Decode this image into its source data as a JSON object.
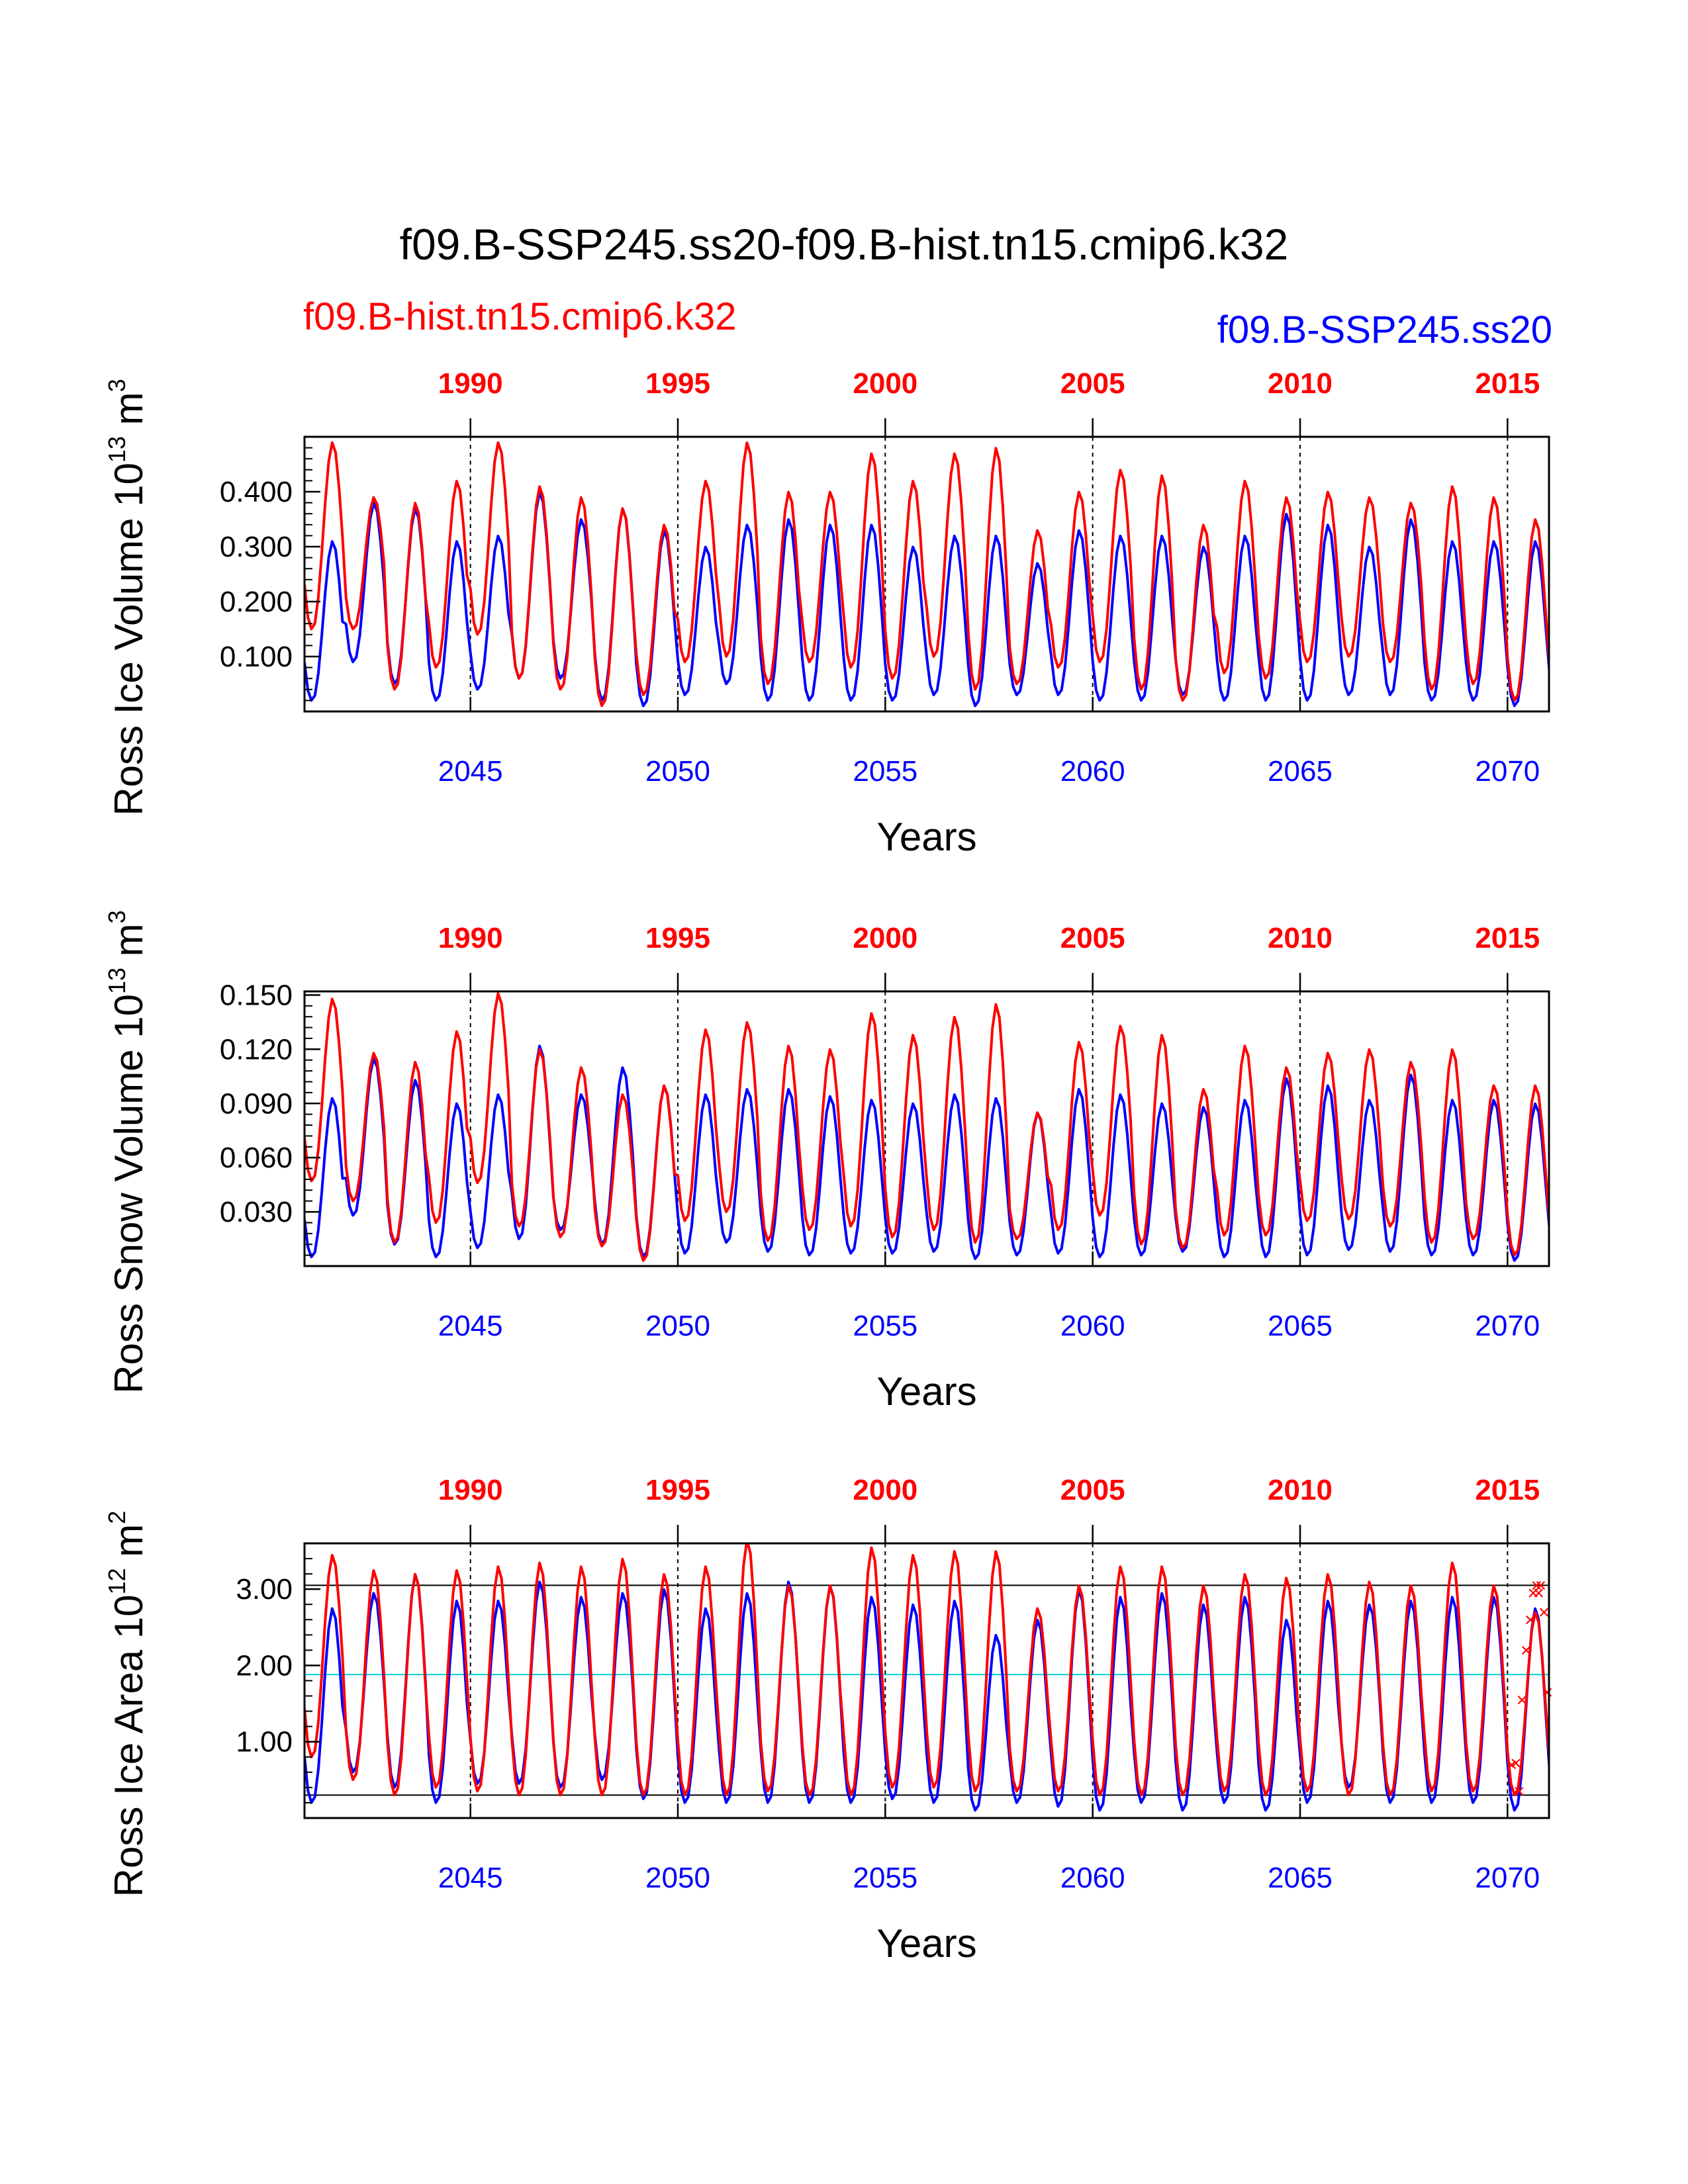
{
  "title": "f09.B-SSP245.ss20-f09.B-hist.tn15.cmip6.k32",
  "legend": {
    "series_a": "f09.B-hist.tn15.cmip6.k32",
    "series_b": "f09.B-SSP245.ss20"
  },
  "colors": {
    "series_a": "#ff0000",
    "series_b": "#0000ff",
    "reference_hline": "#00d0d0",
    "axes": "#000000"
  },
  "chart_data": [
    {
      "type": "line",
      "name": "ross_ice_volume",
      "ylabel_text": "Ross Ice Volume 10",
      "ylabel_exp": "13",
      "ylabel_unit": " m",
      "ylabel_unit_exp": "3",
      "xlabel": "Years",
      "xlim": [
        2041.0,
        2071.0
      ],
      "ylim": [
        0.0,
        0.5
      ],
      "yticks": [
        0.1,
        0.2,
        0.3,
        0.4
      ],
      "ytick_labels": [
        "0.100",
        "0.200",
        "0.300",
        "0.400"
      ],
      "bottom_ticks": [
        2045,
        2050,
        2055,
        2060,
        2065,
        2070
      ],
      "top_ticks": [
        1990,
        1995,
        2000,
        2005,
        2010,
        2015
      ],
      "dashed_vlines_at": [
        2045,
        2050,
        2055,
        2060,
        2065,
        2070
      ],
      "series": [
        {
          "name": "f09.B-hist.tn15.cmip6.k32",
          "color": "#ff0000",
          "annual_min": [
            0.15,
            0.15,
            0.04,
            0.08,
            0.14,
            0.06,
            0.04,
            0.01,
            0.03,
            0.09,
            0.1,
            0.05,
            0.09,
            0.08,
            0.06,
            0.1,
            0.04,
            0.05,
            0.08,
            0.09,
            0.04,
            0.02,
            0.07,
            0.06,
            0.09,
            0.1,
            0.09,
            0.04,
            0.05,
            0.02
          ],
          "annual_max": [
            0.49,
            0.39,
            0.38,
            0.42,
            0.49,
            0.41,
            0.39,
            0.37,
            0.34,
            0.42,
            0.49,
            0.4,
            0.4,
            0.47,
            0.42,
            0.47,
            0.48,
            0.33,
            0.4,
            0.44,
            0.43,
            0.34,
            0.42,
            0.39,
            0.4,
            0.39,
            0.38,
            0.41,
            0.39,
            0.35
          ]
        },
        {
          "name": "f09.B-SSP245.ss20",
          "color": "#0000ff",
          "annual_min": [
            0.02,
            0.09,
            0.05,
            0.02,
            0.04,
            0.06,
            0.06,
            0.02,
            0.01,
            0.03,
            0.05,
            0.02,
            0.02,
            0.02,
            0.02,
            0.03,
            0.01,
            0.03,
            0.03,
            0.02,
            0.02,
            0.03,
            0.02,
            0.02,
            0.02,
            0.03,
            0.03,
            0.02,
            0.02,
            0.01
          ],
          "annual_max": [
            0.31,
            0.38,
            0.37,
            0.31,
            0.32,
            0.4,
            0.35,
            0.37,
            0.33,
            0.3,
            0.34,
            0.35,
            0.34,
            0.34,
            0.3,
            0.32,
            0.32,
            0.27,
            0.33,
            0.32,
            0.32,
            0.3,
            0.32,
            0.36,
            0.34,
            0.3,
            0.35,
            0.31,
            0.31,
            0.31
          ]
        }
      ]
    },
    {
      "type": "line",
      "name": "ross_snow_volume",
      "ylabel_text": "Ross Snow Volume 10",
      "ylabel_exp": "13",
      "ylabel_unit": " m",
      "ylabel_unit_exp": "3",
      "xlabel": "Years",
      "xlim": [
        2041.0,
        2071.0
      ],
      "ylim": [
        0.0,
        0.152
      ],
      "yticks": [
        0.03,
        0.06,
        0.09,
        0.12,
        0.15
      ],
      "ytick_labels": [
        "0.030",
        "0.060",
        "0.090",
        "0.120",
        "0.150"
      ],
      "bottom_ticks": [
        2045,
        2050,
        2055,
        2060,
        2065,
        2070
      ],
      "top_ticks": [
        1990,
        1995,
        2000,
        2005,
        2010,
        2015
      ],
      "dashed_vlines_at": [
        2045,
        2050,
        2055,
        2060,
        2065,
        2070
      ],
      "series": [
        {
          "name": "f09.B-hist.tn15.cmip6.k32",
          "color": "#ff0000",
          "annual_min": [
            0.047,
            0.036,
            0.013,
            0.024,
            0.046,
            0.022,
            0.016,
            0.011,
            0.003,
            0.025,
            0.03,
            0.014,
            0.02,
            0.022,
            0.016,
            0.02,
            0.013,
            0.015,
            0.02,
            0.028,
            0.012,
            0.01,
            0.017,
            0.017,
            0.025,
            0.026,
            0.022,
            0.013,
            0.015,
            0.006
          ],
          "annual_max": [
            0.148,
            0.118,
            0.113,
            0.13,
            0.151,
            0.12,
            0.11,
            0.095,
            0.1,
            0.131,
            0.135,
            0.122,
            0.12,
            0.14,
            0.128,
            0.138,
            0.145,
            0.085,
            0.124,
            0.133,
            0.128,
            0.098,
            0.122,
            0.11,
            0.118,
            0.12,
            0.113,
            0.12,
            0.1,
            0.1
          ]
        },
        {
          "name": "f09.B-SSP245.ss20",
          "color": "#0000ff",
          "annual_min": [
            0.005,
            0.028,
            0.012,
            0.005,
            0.01,
            0.015,
            0.02,
            0.012,
            0.005,
            0.007,
            0.013,
            0.008,
            0.006,
            0.007,
            0.007,
            0.008,
            0.004,
            0.006,
            0.007,
            0.005,
            0.006,
            0.008,
            0.005,
            0.005,
            0.006,
            0.009,
            0.008,
            0.006,
            0.006,
            0.003
          ],
          "annual_max": [
            0.093,
            0.115,
            0.103,
            0.09,
            0.095,
            0.122,
            0.095,
            0.11,
            0.1,
            0.095,
            0.098,
            0.098,
            0.094,
            0.092,
            0.09,
            0.095,
            0.093,
            0.085,
            0.098,
            0.095,
            0.09,
            0.088,
            0.092,
            0.104,
            0.1,
            0.092,
            0.106,
            0.092,
            0.092,
            0.09
          ]
        }
      ]
    },
    {
      "type": "line",
      "name": "ross_ice_area",
      "ylabel_text": "Ross Ice Area 10",
      "ylabel_exp": "12",
      "ylabel_unit": " m",
      "ylabel_unit_exp": "2",
      "xlabel": "Years",
      "xlim": [
        2041.0,
        2071.0
      ],
      "ylim": [
        0.0,
        3.6
      ],
      "yticks": [
        1.0,
        2.0,
        3.0
      ],
      "ytick_labels": [
        "1.00",
        "2.00",
        "3.00"
      ],
      "bottom_ticks": [
        2045,
        2050,
        2055,
        2060,
        2065,
        2070
      ],
      "top_ticks": [
        1990,
        1995,
        2000,
        2005,
        2010,
        2015
      ],
      "dashed_vlines_at": [
        2045,
        2050,
        2055,
        2060,
        2065,
        2070
      ],
      "reference_lines": [
        {
          "y": 3.05,
          "color": "#000000"
        },
        {
          "y": 1.88,
          "color": "#00d0d0"
        },
        {
          "y": 0.3,
          "color": "#000000"
        }
      ],
      "series": [
        {
          "name": "f09.B-hist.tn15.cmip6.k32",
          "color": "#ff0000",
          "annual_min": [
            0.8,
            0.5,
            0.3,
            0.4,
            0.35,
            0.3,
            0.3,
            0.3,
            0.3,
            0.3,
            0.3,
            0.35,
            0.3,
            0.3,
            0.4,
            0.4,
            0.35,
            0.35,
            0.35,
            0.3,
            0.3,
            0.3,
            0.35,
            0.3,
            0.35,
            0.3,
            0.3,
            0.35,
            0.35,
            0.3
          ],
          "annual_max": [
            3.45,
            3.25,
            3.2,
            3.25,
            3.3,
            3.35,
            3.3,
            3.4,
            3.2,
            3.3,
            3.65,
            3.05,
            3.05,
            3.55,
            3.45,
            3.5,
            3.5,
            2.75,
            3.05,
            3.3,
            3.3,
            3.05,
            3.2,
            3.15,
            3.2,
            3.1,
            3.05,
            3.35,
            3.05,
            2.7
          ]
        },
        {
          "name": "f09.B-SSP245.ss20",
          "color": "#0000ff",
          "annual_min": [
            0.2,
            0.6,
            0.4,
            0.2,
            0.45,
            0.45,
            0.4,
            0.5,
            0.25,
            0.2,
            0.2,
            0.2,
            0.2,
            0.2,
            0.25,
            0.2,
            0.1,
            0.2,
            0.15,
            0.1,
            0.2,
            0.1,
            0.2,
            0.1,
            0.2,
            0.4,
            0.2,
            0.2,
            0.2,
            0.1
          ],
          "annual_max": [
            2.75,
            2.95,
            3.2,
            2.85,
            2.85,
            3.1,
            2.9,
            2.95,
            3.0,
            2.75,
            2.95,
            3.1,
            3.05,
            2.9,
            2.8,
            2.85,
            2.4,
            2.6,
            3.0,
            2.9,
            2.95,
            2.8,
            2.9,
            2.6,
            2.85,
            2.8,
            2.85,
            2.9,
            2.9,
            2.75
          ]
        }
      ],
      "markers": {
        "symbol": "×",
        "color": "#ff0000",
        "points": [
          {
            "x": 2070.1,
            "y": 0.7
          },
          {
            "x": 2070.2,
            "y": 0.72
          },
          {
            "x": 2070.28,
            "y": 0.35
          },
          {
            "x": 2070.35,
            "y": 1.55
          },
          {
            "x": 2070.45,
            "y": 2.2
          },
          {
            "x": 2070.55,
            "y": 2.6
          },
          {
            "x": 2070.62,
            "y": 2.95
          },
          {
            "x": 2070.7,
            "y": 3.05
          },
          {
            "x": 2070.75,
            "y": 2.95
          },
          {
            "x": 2070.8,
            "y": 3.05
          },
          {
            "x": 2070.88,
            "y": 2.7
          },
          {
            "x": 2070.96,
            "y": 1.65
          }
        ]
      }
    }
  ]
}
